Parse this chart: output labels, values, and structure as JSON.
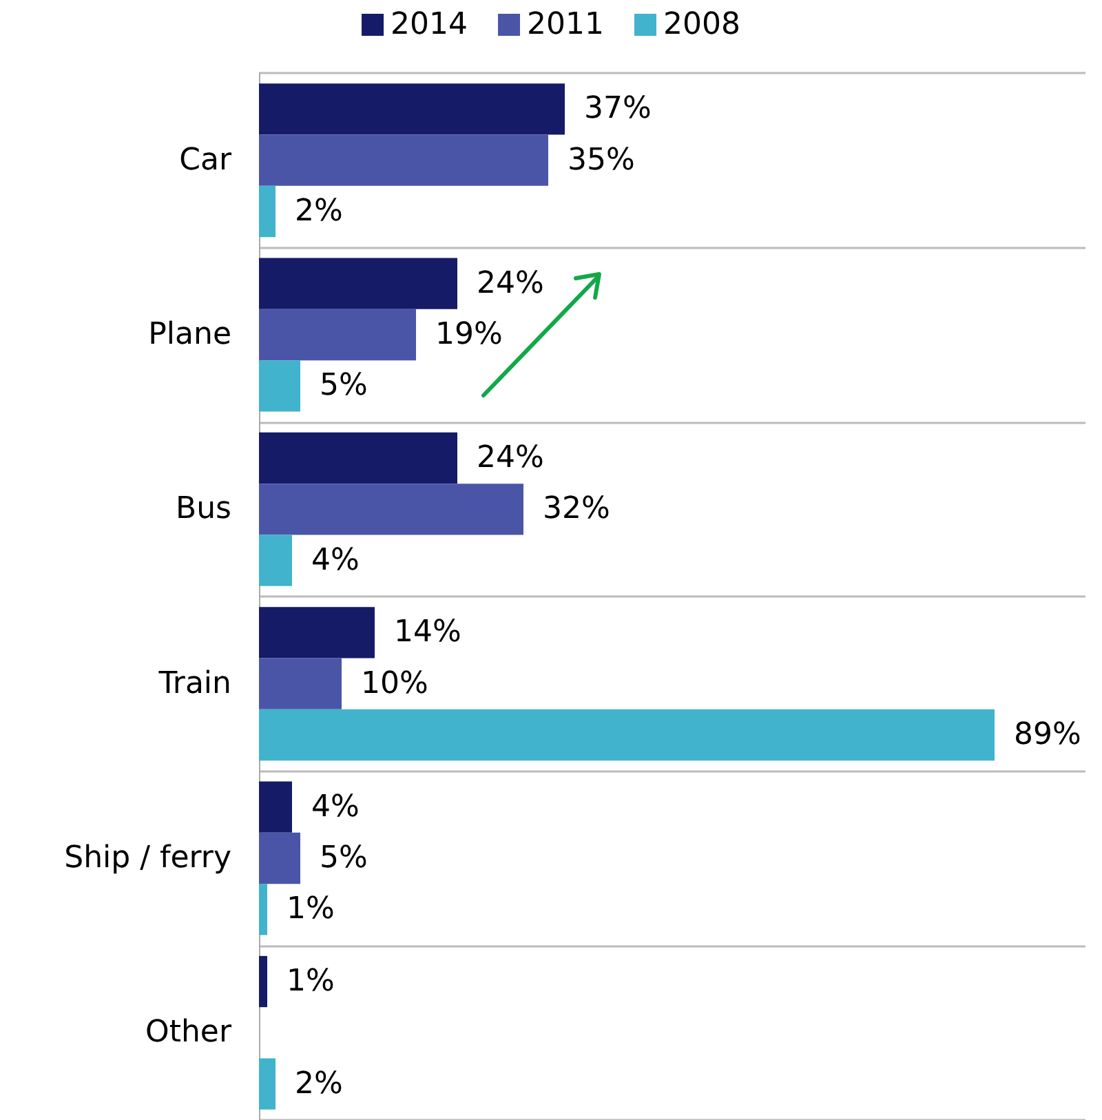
{
  "chart_data": {
    "type": "bar",
    "orientation": "horizontal",
    "categories": [
      "Car",
      "Plane",
      "Bus",
      "Train",
      "Ship / ferry",
      "Other"
    ],
    "series": [
      {
        "name": "2014",
        "color": "#151b66",
        "values": [
          37,
          24,
          24,
          14,
          4,
          1
        ],
        "value_labels": [
          "37%",
          "24%",
          "24%",
          "14%",
          "4%",
          "1%"
        ]
      },
      {
        "name": "2011",
        "color": "#4b55a8",
        "values": [
          35,
          19,
          32,
          10,
          5,
          null
        ],
        "value_labels": [
          "35%",
          "19%",
          "32%",
          "10%",
          "5%",
          null
        ]
      },
      {
        "name": "2008",
        "color": "#41b3cc",
        "values": [
          2,
          5,
          4,
          89,
          1,
          2
        ],
        "value_labels": [
          "2%",
          "5%",
          "4%",
          "89%",
          "1%",
          "2%"
        ]
      }
    ],
    "grid": "y",
    "legend": "top"
  }
}
